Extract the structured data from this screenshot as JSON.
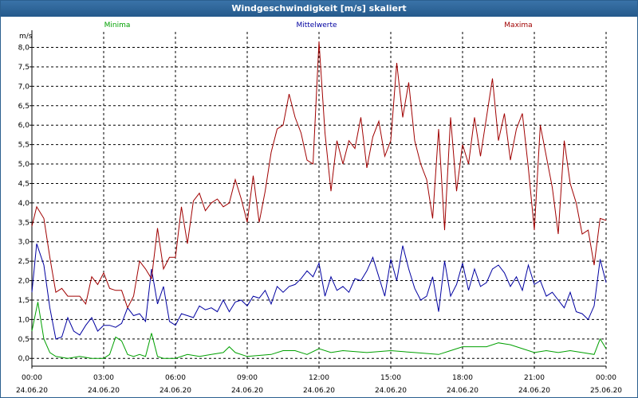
{
  "window": {
    "title": "Windgeschwindigkeit [m/s] skaliert"
  },
  "chart_data": {
    "type": "line",
    "title": "Windgeschwindigkeit [m/s] skaliert",
    "ylabel": "m/s",
    "ylim": [
      -0.2,
      8.4
    ],
    "yticks": [
      0.0,
      0.5,
      1.0,
      1.5,
      2.0,
      2.5,
      3.0,
      3.5,
      4.0,
      4.5,
      5.0,
      5.5,
      6.0,
      6.5,
      7.0,
      7.5,
      8.0
    ],
    "ytick_labels": [
      "0,0",
      "0,5",
      "1,0",
      "1,5",
      "2,0",
      "2,5",
      "3,0",
      "3,5",
      "4,0",
      "4,5",
      "5,0",
      "5,5",
      "6,0",
      "6,5",
      "7,0",
      "7,5",
      "8,0"
    ],
    "xlim_hours": [
      0,
      24
    ],
    "xticks": [
      {
        "h": 0,
        "time": "00:00",
        "date": "24.06.20"
      },
      {
        "h": 3,
        "time": "03:00",
        "date": "24.06.20"
      },
      {
        "h": 6,
        "time": "06:00",
        "date": "24.06.20"
      },
      {
        "h": 9,
        "time": "09:00",
        "date": "24.06.20"
      },
      {
        "h": 12,
        "time": "12:00",
        "date": "24.06.20"
      },
      {
        "h": 15,
        "time": "15:00",
        "date": "24.06.20"
      },
      {
        "h": 18,
        "time": "18:00",
        "date": "24.06.20"
      },
      {
        "h": 21,
        "time": "21:00",
        "date": "24.06.20"
      },
      {
        "h": 24,
        "time": "00:00",
        "date": "25.06.20"
      }
    ],
    "grid": true,
    "legend_position": "top",
    "series": [
      {
        "name": "Minima",
        "color": "#00a000",
        "points": [
          [
            0,
            0.7
          ],
          [
            0.25,
            1.45
          ],
          [
            0.5,
            0.5
          ],
          [
            0.75,
            0.15
          ],
          [
            1,
            0.05
          ],
          [
            1.5,
            0.0
          ],
          [
            2,
            0.05
          ],
          [
            2.5,
            0.0
          ],
          [
            3,
            0.0
          ],
          [
            3.25,
            0.1
          ],
          [
            3.5,
            0.55
          ],
          [
            3.75,
            0.45
          ],
          [
            4,
            0.1
          ],
          [
            4.25,
            0.05
          ],
          [
            4.5,
            0.1
          ],
          [
            4.75,
            0.05
          ],
          [
            5,
            0.65
          ],
          [
            5.25,
            0.05
          ],
          [
            5.5,
            0.0
          ],
          [
            6,
            0.0
          ],
          [
            6.5,
            0.1
          ],
          [
            7,
            0.05
          ],
          [
            7.5,
            0.1
          ],
          [
            8,
            0.15
          ],
          [
            8.25,
            0.3
          ],
          [
            8.5,
            0.15
          ],
          [
            9,
            0.05
          ],
          [
            10,
            0.1
          ],
          [
            10.5,
            0.2
          ],
          [
            11,
            0.2
          ],
          [
            11.5,
            0.1
          ],
          [
            12,
            0.25
          ],
          [
            12.5,
            0.15
          ],
          [
            13,
            0.2
          ],
          [
            14,
            0.15
          ],
          [
            15,
            0.2
          ],
          [
            16,
            0.15
          ],
          [
            17,
            0.1
          ],
          [
            17.5,
            0.2
          ],
          [
            18,
            0.3
          ],
          [
            19,
            0.3
          ],
          [
            19.5,
            0.4
          ],
          [
            20,
            0.35
          ],
          [
            20.5,
            0.25
          ],
          [
            21,
            0.15
          ],
          [
            21.5,
            0.2
          ],
          [
            22,
            0.15
          ],
          [
            22.5,
            0.2
          ],
          [
            23,
            0.15
          ],
          [
            23.5,
            0.1
          ],
          [
            23.75,
            0.5
          ],
          [
            24,
            0.25
          ]
        ]
      },
      {
        "name": "Mittelwerte",
        "color": "#0000a0",
        "points": [
          [
            0,
            1.7
          ],
          [
            0.2,
            2.95
          ],
          [
            0.5,
            2.4
          ],
          [
            0.75,
            1.3
          ],
          [
            1,
            0.5
          ],
          [
            1.25,
            0.55
          ],
          [
            1.5,
            1.05
          ],
          [
            1.75,
            0.7
          ],
          [
            2,
            0.6
          ],
          [
            2.25,
            0.85
          ],
          [
            2.5,
            1.05
          ],
          [
            2.75,
            0.7
          ],
          [
            3,
            0.85
          ],
          [
            3.25,
            0.85
          ],
          [
            3.5,
            0.8
          ],
          [
            3.75,
            0.9
          ],
          [
            4,
            1.3
          ],
          [
            4.25,
            1.1
          ],
          [
            4.5,
            1.15
          ],
          [
            4.75,
            0.95
          ],
          [
            5,
            2.3
          ],
          [
            5.25,
            1.4
          ],
          [
            5.5,
            1.85
          ],
          [
            5.75,
            0.95
          ],
          [
            6,
            0.85
          ],
          [
            6.25,
            1.15
          ],
          [
            6.5,
            1.1
          ],
          [
            6.75,
            1.05
          ],
          [
            7,
            1.35
          ],
          [
            7.25,
            1.25
          ],
          [
            7.5,
            1.3
          ],
          [
            7.75,
            1.2
          ],
          [
            8,
            1.5
          ],
          [
            8.25,
            1.2
          ],
          [
            8.5,
            1.45
          ],
          [
            8.75,
            1.5
          ],
          [
            9,
            1.35
          ],
          [
            9.25,
            1.6
          ],
          [
            9.5,
            1.55
          ],
          [
            9.75,
            1.75
          ],
          [
            10,
            1.4
          ],
          [
            10.25,
            1.85
          ],
          [
            10.5,
            1.7
          ],
          [
            10.75,
            1.85
          ],
          [
            11,
            1.9
          ],
          [
            11.25,
            2.05
          ],
          [
            11.5,
            2.25
          ],
          [
            11.75,
            2.1
          ],
          [
            12,
            2.45
          ],
          [
            12.25,
            1.6
          ],
          [
            12.5,
            2.1
          ],
          [
            12.75,
            1.75
          ],
          [
            13,
            1.85
          ],
          [
            13.25,
            1.7
          ],
          [
            13.5,
            2.05
          ],
          [
            13.75,
            2.0
          ],
          [
            14,
            2.25
          ],
          [
            14.25,
            2.6
          ],
          [
            14.5,
            2.1
          ],
          [
            14.75,
            1.6
          ],
          [
            15,
            2.55
          ],
          [
            15.25,
            2.0
          ],
          [
            15.5,
            2.9
          ],
          [
            15.75,
            2.3
          ],
          [
            16,
            1.8
          ],
          [
            16.25,
            1.5
          ],
          [
            16.5,
            1.6
          ],
          [
            16.75,
            2.1
          ],
          [
            17,
            1.2
          ],
          [
            17.25,
            2.5
          ],
          [
            17.5,
            1.6
          ],
          [
            17.75,
            1.9
          ],
          [
            18,
            2.45
          ],
          [
            18.25,
            1.75
          ],
          [
            18.5,
            2.3
          ],
          [
            18.75,
            1.85
          ],
          [
            19,
            1.95
          ],
          [
            19.25,
            2.3
          ],
          [
            19.5,
            2.4
          ],
          [
            19.75,
            2.2
          ],
          [
            20,
            1.85
          ],
          [
            20.25,
            2.1
          ],
          [
            20.5,
            1.75
          ],
          [
            20.75,
            2.4
          ],
          [
            21,
            1.9
          ],
          [
            21.25,
            2.0
          ],
          [
            21.5,
            1.6
          ],
          [
            21.75,
            1.7
          ],
          [
            22,
            1.5
          ],
          [
            22.25,
            1.3
          ],
          [
            22.5,
            1.7
          ],
          [
            22.75,
            1.2
          ],
          [
            23,
            1.15
          ],
          [
            23.25,
            1.0
          ],
          [
            23.5,
            1.35
          ],
          [
            23.75,
            2.55
          ],
          [
            24,
            1.95
          ]
        ]
      },
      {
        "name": "Maxima",
        "color": "#a00000",
        "points": [
          [
            0,
            3.4
          ],
          [
            0.2,
            3.9
          ],
          [
            0.5,
            3.6
          ],
          [
            0.75,
            2.6
          ],
          [
            1,
            1.7
          ],
          [
            1.25,
            1.8
          ],
          [
            1.5,
            1.6
          ],
          [
            2,
            1.6
          ],
          [
            2.25,
            1.4
          ],
          [
            2.5,
            2.1
          ],
          [
            2.75,
            1.9
          ],
          [
            3,
            2.2
          ],
          [
            3.25,
            1.8
          ],
          [
            3.5,
            1.75
          ],
          [
            3.75,
            1.75
          ],
          [
            4,
            1.3
          ],
          [
            4.25,
            1.6
          ],
          [
            4.5,
            2.5
          ],
          [
            4.75,
            2.3
          ],
          [
            5,
            2.05
          ],
          [
            5.25,
            3.35
          ],
          [
            5.5,
            2.3
          ],
          [
            5.75,
            2.6
          ],
          [
            6,
            2.6
          ],
          [
            6.25,
            3.9
          ],
          [
            6.5,
            2.95
          ],
          [
            6.75,
            4.05
          ],
          [
            7,
            4.25
          ],
          [
            7.25,
            3.8
          ],
          [
            7.5,
            4.0
          ],
          [
            7.75,
            4.1
          ],
          [
            8,
            3.9
          ],
          [
            8.25,
            4.0
          ],
          [
            8.5,
            4.6
          ],
          [
            8.75,
            4.1
          ],
          [
            9,
            3.5
          ],
          [
            9.25,
            4.7
          ],
          [
            9.5,
            3.5
          ],
          [
            9.75,
            4.3
          ],
          [
            10,
            5.3
          ],
          [
            10.25,
            5.9
          ],
          [
            10.5,
            6.0
          ],
          [
            10.75,
            6.8
          ],
          [
            11,
            6.2
          ],
          [
            11.25,
            5.8
          ],
          [
            11.5,
            5.1
          ],
          [
            11.75,
            5.0
          ],
          [
            12,
            8.15
          ],
          [
            12.25,
            5.8
          ],
          [
            12.5,
            4.3
          ],
          [
            12.75,
            5.6
          ],
          [
            13,
            5.0
          ],
          [
            13.25,
            5.6
          ],
          [
            13.5,
            5.4
          ],
          [
            13.75,
            6.2
          ],
          [
            14,
            4.9
          ],
          [
            14.25,
            5.7
          ],
          [
            14.5,
            6.1
          ],
          [
            14.75,
            5.2
          ],
          [
            15,
            5.6
          ],
          [
            15.25,
            7.6
          ],
          [
            15.5,
            6.2
          ],
          [
            15.75,
            7.1
          ],
          [
            16,
            5.6
          ],
          [
            16.25,
            5.0
          ],
          [
            16.5,
            4.6
          ],
          [
            16.75,
            3.6
          ],
          [
            17,
            5.9
          ],
          [
            17.25,
            3.3
          ],
          [
            17.5,
            6.2
          ],
          [
            17.75,
            4.3
          ],
          [
            18,
            5.5
          ],
          [
            18.25,
            5.0
          ],
          [
            18.5,
            6.2
          ],
          [
            18.75,
            5.2
          ],
          [
            19,
            6.2
          ],
          [
            19.25,
            7.2
          ],
          [
            19.5,
            5.6
          ],
          [
            19.75,
            6.3
          ],
          [
            20,
            5.1
          ],
          [
            20.25,
            5.9
          ],
          [
            20.5,
            6.3
          ],
          [
            20.75,
            4.9
          ],
          [
            21,
            3.3
          ],
          [
            21.25,
            6.0
          ],
          [
            21.5,
            5.2
          ],
          [
            21.75,
            4.4
          ],
          [
            22,
            3.2
          ],
          [
            22.25,
            5.6
          ],
          [
            22.5,
            4.5
          ],
          [
            22.75,
            4.0
          ],
          [
            23,
            3.2
          ],
          [
            23.25,
            3.3
          ],
          [
            23.5,
            2.4
          ],
          [
            23.75,
            3.6
          ],
          [
            24,
            3.55
          ]
        ]
      }
    ]
  }
}
